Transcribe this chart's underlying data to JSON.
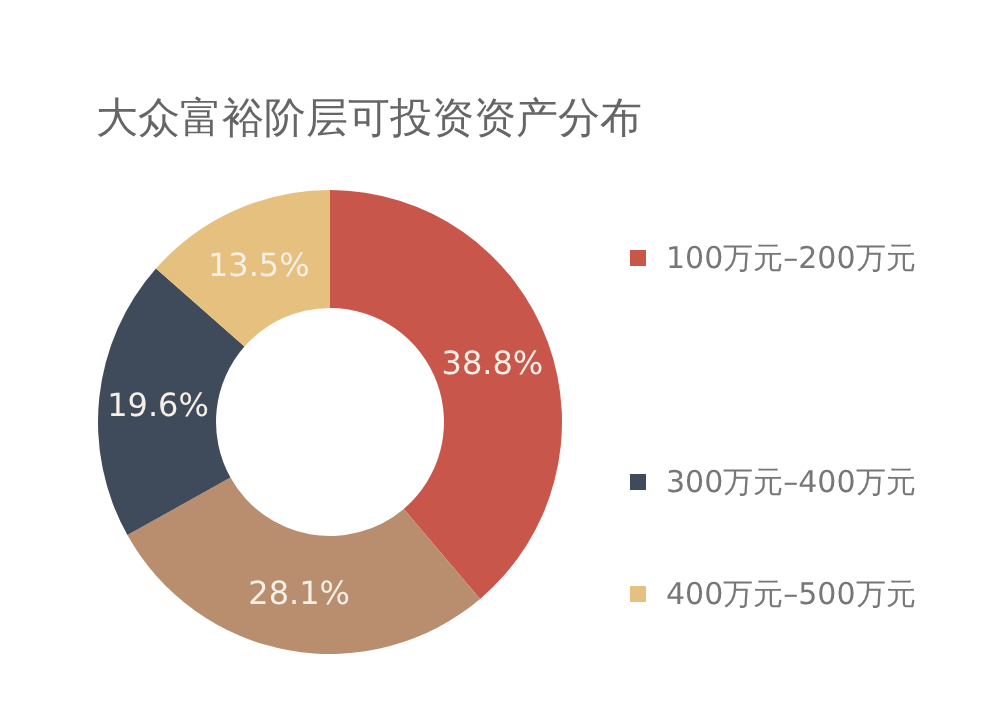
{
  "chart_data": {
    "type": "donut",
    "title": "大众富裕阶层可投资资产分布",
    "categories": [
      "100万元–200万元",
      null,
      "300万元–400万元",
      "400万元–500万元"
    ],
    "values": [
      38.8,
      28.1,
      19.6,
      13.5
    ],
    "colors": [
      "#c9564a",
      "#b88e6e",
      "#3f4b5a",
      "#e6c07f"
    ],
    "value_labels": [
      "38.8%",
      "28.1%",
      "19.6%",
      "13.5%"
    ],
    "legend": "right"
  }
}
